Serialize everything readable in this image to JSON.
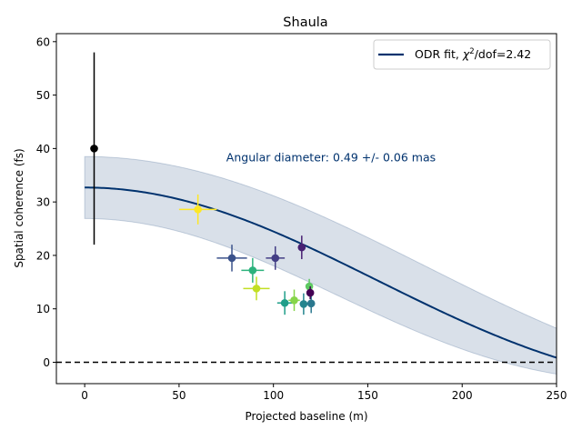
{
  "chart_data": {
    "type": "scatter",
    "title": "Shaula",
    "xlabel": "Projected baseline (m)",
    "ylabel": "Spatial coherence (fs)",
    "xlim": [
      -15,
      250
    ],
    "ylim": [
      -4,
      61.5
    ],
    "xticks": [
      0,
      50,
      100,
      150,
      200,
      250
    ],
    "yticks": [
      0,
      10,
      20,
      30,
      40,
      50,
      60
    ],
    "grid": false,
    "legend": {
      "placement": "top-right",
      "label_prefix": "ODR fit, ",
      "label_chi": "χ",
      "label_sup": "2",
      "label_suffix": "/dof=2.42"
    },
    "annotation": {
      "text": "Angular diameter: 0.49 +/- 0.06 mas",
      "x": 75,
      "y": 38.3
    },
    "reference_line": {
      "y": 0,
      "style": "dashed"
    },
    "fit": {
      "peak": 32.7,
      "band_upper_peak": 38.5,
      "band_lower_peak": 26.9,
      "first_zero": 258,
      "band_upper_zero": 300,
      "band_lower_zero": 222,
      "color": "#00326e"
    },
    "points": [
      {
        "x": 5,
        "y": 40,
        "xerr": 0,
        "yerr": 18,
        "color": "#000000"
      },
      {
        "x": 60,
        "y": 28.6,
        "xerr": 10,
        "yerr": 2.8,
        "color": "#fde725"
      },
      {
        "x": 78,
        "y": 19.5,
        "xerr": 8,
        "yerr": 2.5,
        "color": "#3b528b"
      },
      {
        "x": 89,
        "y": 17.2,
        "xerr": 6,
        "yerr": 2.3,
        "color": "#2db27d"
      },
      {
        "x": 91,
        "y": 13.8,
        "xerr": 7,
        "yerr": 2.2,
        "color": "#c2df23"
      },
      {
        "x": 101,
        "y": 19.5,
        "xerr": 5,
        "yerr": 2.2,
        "color": "#433e85"
      },
      {
        "x": 106,
        "y": 11.1,
        "xerr": 4,
        "yerr": 2.2,
        "color": "#1f9e89"
      },
      {
        "x": 111,
        "y": 11.6,
        "xerr": 3,
        "yerr": 2.0,
        "color": "#86d549"
      },
      {
        "x": 115,
        "y": 21.5,
        "xerr": 2,
        "yerr": 2.2,
        "color": "#482173"
      },
      {
        "x": 116,
        "y": 10.9,
        "xerr": 2,
        "yerr": 2.0,
        "color": "#25858e"
      },
      {
        "x": 119,
        "y": 14.2,
        "xerr": 1,
        "yerr": 1.4,
        "color": "#5ec962"
      },
      {
        "x": 120,
        "y": 11.0,
        "xerr": 2,
        "yerr": 1.8,
        "color": "#2a788e"
      },
      {
        "x": 119.5,
        "y": 13.0,
        "xerr": 1,
        "yerr": 1.2,
        "color": "#440154"
      }
    ]
  }
}
